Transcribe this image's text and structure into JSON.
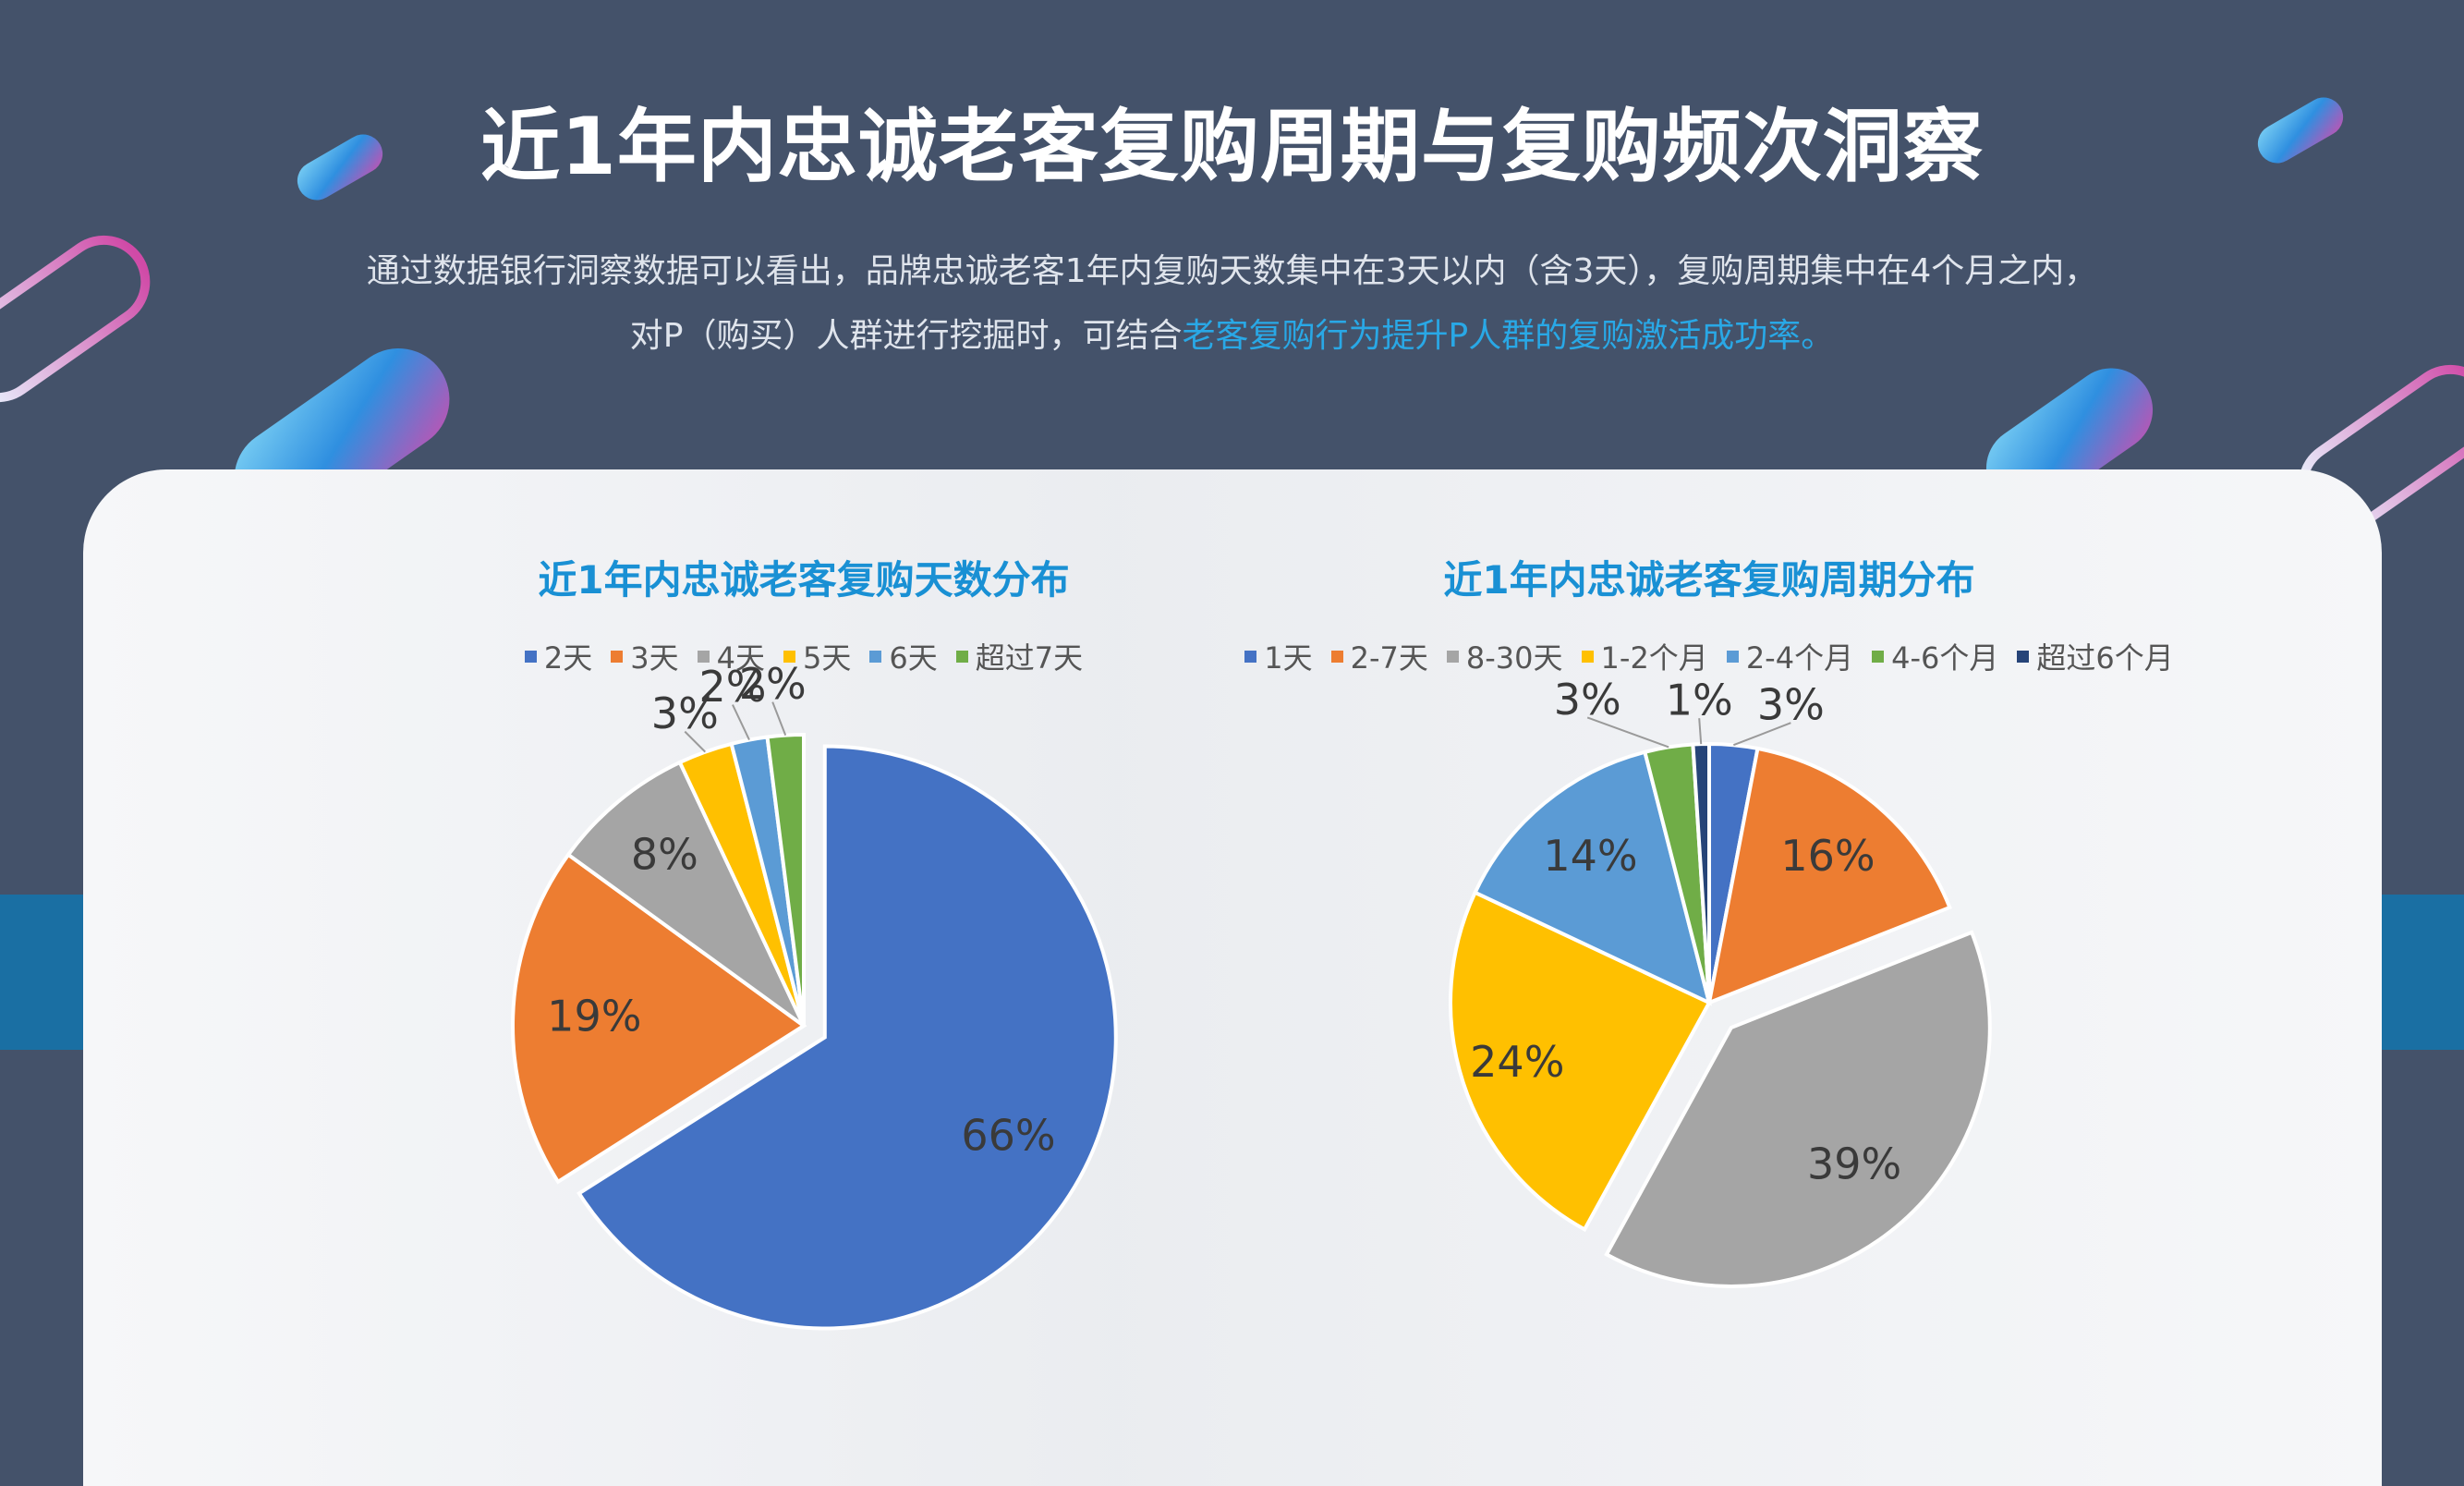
{
  "title": "近1年内忠诚老客复购周期与复购频次洞察",
  "subtitle": {
    "line1": "通过数据银行洞察数据可以看出，品牌忠诚老客1年内复购天数集中在3天以内（含3天），复购周期集中在4个月之内，",
    "line2_prefix": "对P（购买）人群进行挖掘时，可结合",
    "line2_highlight": "老客复购行为提升P人群的复购激活成功率。"
  },
  "colors": {
    "background": "#44526a",
    "accent": "#1990d4",
    "highlight": "#29a8e6",
    "band": "#1a6fa3"
  },
  "chart_data": [
    {
      "type": "pie",
      "title": "近1年内忠诚老客复购天数分布",
      "legend_position": "top",
      "categories": [
        "2天",
        "3天",
        "4天",
        "5天",
        "6天",
        "超过7天"
      ],
      "values": [
        66,
        19,
        8,
        3,
        2,
        2
      ],
      "labels": [
        "66%",
        "19%",
        "8%",
        "3%",
        "2%",
        "2%"
      ],
      "colors": [
        "#4472c4",
        "#ed7d31",
        "#a5a5a5",
        "#ffc000",
        "#5b9bd5",
        "#70ad47"
      ]
    },
    {
      "type": "pie",
      "title": "近1年内忠诚老客复购周期分布",
      "legend_position": "top",
      "categories": [
        "1天",
        "2-7天",
        "8-30天",
        "1-2个月",
        "2-4个月",
        "4-6个月",
        "超过6个月"
      ],
      "values": [
        3,
        16,
        39,
        24,
        14,
        3,
        1
      ],
      "labels": [
        "3%",
        "16%",
        "39%",
        "24%",
        "14%",
        "3%",
        "1%"
      ],
      "colors": [
        "#4472c4",
        "#ed7d31",
        "#a5a5a5",
        "#ffc000",
        "#5b9bd5",
        "#70ad47",
        "#264478"
      ]
    }
  ]
}
